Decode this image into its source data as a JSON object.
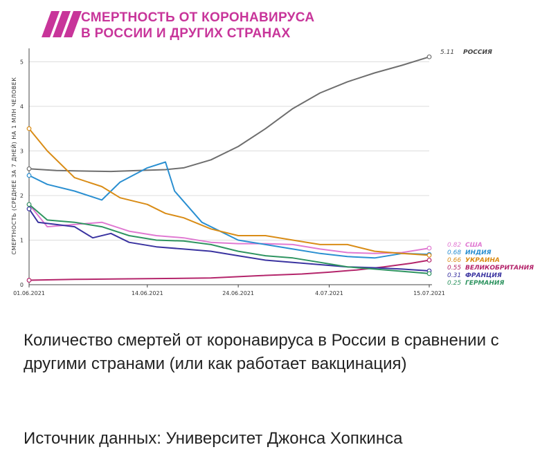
{
  "header": {
    "title_lines": [
      "СМЕРТНОСТЬ ОТ КОРОНАВИРУСА",
      "В РОССИИ И ДРУГИХ СТРАНАХ"
    ]
  },
  "post": {
    "caption": "Количество смертей от коронавируса в России в сравнении с другими странами (или как работает вакцинация)",
    "source": "Источник данных: Университет Джонса Хопкинса"
  },
  "colors": {
    "title": "#c8359a",
    "logo": "#c8359a",
    "grid": "#dcdcdc"
  },
  "chart_data": {
    "type": "line",
    "title": "СМЕРТНОСТЬ ОТ КОРОНАВИРУСА В РОССИИ И ДРУГИХ СТРАНАХ",
    "ylabel": "СМЕРТНОСТЬ (СРЕДНЕЕ ЗА 7 ДНЕЙ) НА 1 МЛН ЧЕЛОВЕК",
    "xlabel": "",
    "x_start": "2021-06-01",
    "x_end": "2021-07-15",
    "xticks": [
      {
        "date": "2021-06-01",
        "label": "01.06.2021"
      },
      {
        "date": "2021-06-14",
        "label": "14.06.2021"
      },
      {
        "date": "2021-06-24",
        "label": "24.06.2021"
      },
      {
        "date": "2021-07-04",
        "label": "4.07.2021"
      },
      {
        "date": "2021-07-15",
        "label": "15.07.2021"
      }
    ],
    "yticks": [
      0,
      1,
      2,
      3,
      4,
      5
    ],
    "ylim": [
      0,
      5.3
    ],
    "grid": true,
    "series": [
      {
        "name": "РОССИЯ",
        "final_label": "5.11",
        "color": "#6e6e6e",
        "x": [
          "2021-06-01",
          "2021-06-04",
          "2021-06-07",
          "2021-06-10",
          "2021-06-13",
          "2021-06-16",
          "2021-06-18",
          "2021-06-21",
          "2021-06-24",
          "2021-06-27",
          "2021-06-30",
          "2021-07-03",
          "2021-07-06",
          "2021-07-09",
          "2021-07-12",
          "2021-07-15"
        ],
        "values": [
          2.6,
          2.56,
          2.55,
          2.54,
          2.56,
          2.58,
          2.62,
          2.8,
          3.1,
          3.5,
          3.95,
          4.3,
          4.55,
          4.75,
          4.92,
          5.11
        ]
      },
      {
        "name": "США",
        "final_label": "0.82",
        "color": "#e079d2",
        "x": [
          "2021-06-01",
          "2021-06-03",
          "2021-06-06",
          "2021-06-09",
          "2021-06-12",
          "2021-06-15",
          "2021-06-18",
          "2021-06-21",
          "2021-06-24",
          "2021-06-27",
          "2021-06-30",
          "2021-07-03",
          "2021-07-06",
          "2021-07-09",
          "2021-07-12",
          "2021-07-15"
        ],
        "values": [
          1.8,
          1.3,
          1.35,
          1.4,
          1.2,
          1.1,
          1.05,
          0.95,
          0.92,
          0.92,
          0.9,
          0.8,
          0.72,
          0.7,
          0.72,
          0.82
        ]
      },
      {
        "name": "ИНДИЯ",
        "final_label": "0.68",
        "color": "#2a8fd1",
        "x": [
          "2021-06-01",
          "2021-06-03",
          "2021-06-06",
          "2021-06-09",
          "2021-06-11",
          "2021-06-14",
          "2021-06-16",
          "2021-06-17",
          "2021-06-20",
          "2021-06-24",
          "2021-06-27",
          "2021-06-30",
          "2021-07-03",
          "2021-07-06",
          "2021-07-09",
          "2021-07-12",
          "2021-07-15"
        ],
        "values": [
          2.45,
          2.25,
          2.1,
          1.9,
          2.3,
          2.62,
          2.75,
          2.1,
          1.4,
          1.0,
          0.9,
          0.8,
          0.7,
          0.63,
          0.6,
          0.7,
          0.68
        ]
      },
      {
        "name": "УКРАИНА",
        "final_label": "0.66",
        "color": "#d98c16",
        "x": [
          "2021-06-01",
          "2021-06-03",
          "2021-06-06",
          "2021-06-09",
          "2021-06-11",
          "2021-06-14",
          "2021-06-16",
          "2021-06-18",
          "2021-06-21",
          "2021-06-24",
          "2021-06-27",
          "2021-06-30",
          "2021-07-03",
          "2021-07-06",
          "2021-07-09",
          "2021-07-12",
          "2021-07-15"
        ],
        "values": [
          3.5,
          3.0,
          2.4,
          2.2,
          1.95,
          1.8,
          1.6,
          1.5,
          1.25,
          1.1,
          1.1,
          1.0,
          0.9,
          0.9,
          0.75,
          0.7,
          0.66
        ]
      },
      {
        "name": "ВЕЛИКОБРИТАНИЯ",
        "final_label": "0.55",
        "color": "#b4256b",
        "x": [
          "2021-06-01",
          "2021-06-06",
          "2021-06-11",
          "2021-06-16",
          "2021-06-21",
          "2021-06-26",
          "2021-07-01",
          "2021-07-04",
          "2021-07-07",
          "2021-07-10",
          "2021-07-13",
          "2021-07-15"
        ],
        "values": [
          0.1,
          0.12,
          0.13,
          0.14,
          0.15,
          0.2,
          0.24,
          0.28,
          0.33,
          0.4,
          0.48,
          0.55
        ]
      },
      {
        "name": "ФРАНЦИЯ",
        "final_label": "0.31",
        "color": "#3a33a0",
        "x": [
          "2021-06-01",
          "2021-06-02",
          "2021-06-04",
          "2021-06-06",
          "2021-06-08",
          "2021-06-10",
          "2021-06-12",
          "2021-06-15",
          "2021-06-18",
          "2021-06-21",
          "2021-06-24",
          "2021-06-27",
          "2021-06-30",
          "2021-07-03",
          "2021-07-06",
          "2021-07-09",
          "2021-07-12",
          "2021-07-15"
        ],
        "values": [
          1.7,
          1.4,
          1.35,
          1.3,
          1.05,
          1.15,
          0.95,
          0.85,
          0.8,
          0.75,
          0.65,
          0.55,
          0.5,
          0.45,
          0.4,
          0.38,
          0.35,
          0.31
        ]
      },
      {
        "name": "ГЕРМАНИЯ",
        "final_label": "0.25",
        "color": "#2e9460",
        "x": [
          "2021-06-01",
          "2021-06-03",
          "2021-06-06",
          "2021-06-09",
          "2021-06-12",
          "2021-06-15",
          "2021-06-18",
          "2021-06-21",
          "2021-06-24",
          "2021-06-27",
          "2021-06-30",
          "2021-07-03",
          "2021-07-06",
          "2021-07-09",
          "2021-07-12",
          "2021-07-15"
        ],
        "values": [
          1.8,
          1.45,
          1.4,
          1.3,
          1.1,
          1.0,
          0.98,
          0.9,
          0.75,
          0.65,
          0.6,
          0.5,
          0.4,
          0.35,
          0.3,
          0.25
        ]
      }
    ]
  }
}
